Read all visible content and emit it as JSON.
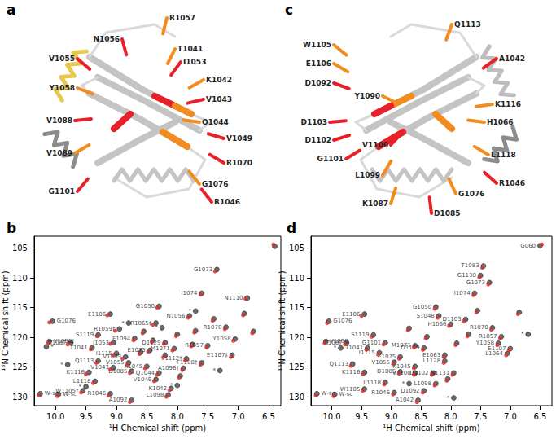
{
  "structures": [
    {
      "panel_label": "a",
      "residues": [
        {
          "text": "R1057",
          "color": "#f28c1e"
        },
        {
          "text": "N1056",
          "color": "#e8202a"
        },
        {
          "text": "T1041",
          "color": "#f28c1e"
        },
        {
          "text": "I1053",
          "color": "#e8202a"
        },
        {
          "text": "V1055",
          "color": "#e8202a"
        },
        {
          "text": "K1042",
          "color": "#f28c1e"
        },
        {
          "text": "Y1058",
          "color": "#f28c1e"
        },
        {
          "text": "V1043",
          "color": "#e8202a"
        },
        {
          "text": "Q1044",
          "color": "#f28c1e"
        },
        {
          "text": "V1088",
          "color": "#e8202a"
        },
        {
          "text": "V1049",
          "color": "#e8202a"
        },
        {
          "text": "R1070",
          "color": "#e8202a"
        },
        {
          "text": "V1089",
          "color": "#f28c1e"
        },
        {
          "text": "G1101",
          "color": "#e8202a"
        },
        {
          "text": "R1046",
          "color": "#e8202a"
        },
        {
          "text": "G1076",
          "color": "#f28c1e"
        }
      ]
    },
    {
      "panel_label": "c",
      "residues": [
        {
          "text": "Q1113",
          "color": "#f28c1e"
        },
        {
          "text": "W1105",
          "color": "#f28c1e"
        },
        {
          "text": "E1106",
          "color": "#f28c1e"
        },
        {
          "text": "D1092",
          "color": "#e8202a"
        },
        {
          "text": "Y1090",
          "color": "#f28c1e"
        },
        {
          "text": "D1103",
          "color": "#e8202a"
        },
        {
          "text": "D1102",
          "color": "#e8202a"
        },
        {
          "text": "G1101",
          "color": "#e8202a"
        },
        {
          "text": "V1100",
          "color": "#e8202a"
        },
        {
          "text": "L1099",
          "color": "#f28c1e"
        },
        {
          "text": "K1087",
          "color": "#f28c1e"
        },
        {
          "text": "A1042",
          "color": "#e8202a"
        },
        {
          "text": "K1116",
          "color": "#f28c1e"
        },
        {
          "text": "H1066",
          "color": "#f28c1e"
        },
        {
          "text": "L1118",
          "color": "#f28c1e"
        },
        {
          "text": "R1046",
          "color": "#e8202a"
        },
        {
          "text": "G1076",
          "color": "#f28c1e"
        },
        {
          "text": "D1085",
          "color": "#e8202a"
        }
      ]
    }
  ],
  "chart_data": [
    {
      "panel_label": "b",
      "type": "scatter",
      "xlabel": "¹H Chemical shift (ppm)",
      "ylabel": "¹⁵N Chemical shift (ppm)",
      "xlim": [
        10.35,
        6.3
      ],
      "ylim": [
        131.5,
        103
      ],
      "xticks": [
        {
          "value": 10,
          "label": "10.0"
        },
        9.5,
        {
          "value": 9,
          "label": "9.0"
        },
        8.5,
        {
          "value": 8,
          "label": "8.0"
        },
        7.5,
        {
          "value": 7,
          "label": "7.0"
        },
        6.5
      ],
      "yticks": [
        105,
        110,
        115,
        120,
        125,
        130
      ],
      "grid": false,
      "series": [
        {
          "color": "#3a3a3a",
          "marker": "circle",
          "x": [
            7.35,
            7.6,
            6.85,
            8.3,
            9.1,
            7.8,
            10.05,
            8.35,
            7.2,
            8.95,
            9.3,
            10.1,
            9.05,
            9.75,
            9.4,
            7.05,
            7.5,
            8.2,
            8.7,
            8.05,
            8.45,
            7.1,
            9.0,
            8.85,
            9.3,
            8.8,
            7.85,
            7.6,
            8.5,
            7.9,
            9.05,
            8.75,
            8.3,
            9.45,
            8.35,
            9.35,
            8.1,
            9.55,
            9.1,
            8.15,
            8.75,
            10.25,
            9.95,
            10.15,
            9.8,
            8.8,
            8.25,
            7.7,
            7.3,
            8.0,
            9.5,
            8.55,
            8.0,
            7.7,
            8.4,
            7.75,
            8.6,
            7.4,
            6.75,
            6.9,
            8.2,
            7.95,
            6.4
          ],
          "y": [
            108.6,
            112.6,
            113.4,
            114.8,
            116.1,
            116.4,
            117.3,
            117.6,
            118.3,
            118.6,
            119.6,
            120.7,
            120.9,
            120.9,
            121.8,
            120.3,
            121.4,
            120.9,
            120.2,
            121.9,
            122.2,
            123.0,
            122.7,
            123.3,
            124.0,
            124.3,
            123.6,
            124.3,
            124.9,
            125.2,
            125.1,
            125.7,
            126.0,
            125.9,
            127.1,
            127.4,
            128.6,
            129.0,
            129.5,
            129.7,
            130.6,
            129.5,
            129.6,
            121.6,
            124.6,
            117.6,
            118.4,
            115.6,
            125.6,
            128.1,
            128.3,
            119.0,
            119.5,
            118.9,
            120.5,
            121.2,
            122.5,
            116.9,
            119.0,
            116.0,
            123.0,
            126.5,
            104.7
          ],
          "labels": [
            "G1073",
            "I1074",
            "N1110",
            "G1050",
            "E1106",
            "N1056",
            "G1076",
            "R1065‡",
            "R1070",
            "R1059‡",
            "S1119",
            "Y1090†",
            "I1053",
            "K1087",
            "T1041",
            "Y1058",
            "R1057",
            "D1129",
            "E1094",
            "M1071",
            "E1075",
            "E1107‡",
            "I1115",
            "V1089",
            "Q1113",
            "V1055",
            "V1112†",
            "F1108†",
            "K1045",
            "A1096†",
            "V1043",
            "D1085",
            "Q1044",
            "K1116",
            "V1049",
            "L1118",
            "K1042",
            "W1105†",
            "R1046",
            "L1098",
            "A1092",
            "W-sc",
            "W-sc",
            "*",
            "*",
            "*",
            "*",
            "*",
            "*",
            "*",
            "*",
            null,
            null,
            null,
            null,
            null,
            null,
            null,
            null,
            null,
            null,
            null,
            null
          ]
        },
        {
          "color": "#d62f2f",
          "marker": "circle",
          "x": [
            7.38,
            7.62,
            6.88,
            8.33,
            9.15,
            7.82,
            10.1,
            8.4,
            7.22,
            9.02,
            9.32,
            10.12,
            9.1,
            9.8,
            9.42,
            7.08,
            7.52,
            8.22,
            8.72,
            8.08,
            8.48,
            7.12,
            9.05,
            8.9,
            9.33,
            8.82,
            7.87,
            7.62,
            8.53,
            7.92,
            9.1,
            8.78,
            8.33,
            9.5,
            8.38,
            9.38,
            8.13,
            9.58,
            9.13,
            8.18,
            8.78,
            10.27,
            9.97,
            6.42,
            8.57,
            8.02,
            7.72,
            8.42,
            7.77,
            8.62,
            7.42,
            6.77,
            6.92,
            8.22,
            7.97
          ],
          "y": [
            108.9,
            112.8,
            113.5,
            115.0,
            116.3,
            116.7,
            117.5,
            117.9,
            118.6,
            118.9,
            119.8,
            121.0,
            121.1,
            121.2,
            122.0,
            120.6,
            121.7,
            121.1,
            120.5,
            122.2,
            122.4,
            123.3,
            123.0,
            123.6,
            124.3,
            124.6,
            123.9,
            124.6,
            125.2,
            125.5,
            125.4,
            126.0,
            126.3,
            126.2,
            127.4,
            127.7,
            128.9,
            129.3,
            129.8,
            130.0,
            130.9,
            129.8,
            129.9,
            104.4,
            119.3,
            119.8,
            119.2,
            120.8,
            121.5,
            122.8,
            117.2,
            119.3,
            116.3,
            123.3,
            126.8
          ]
        }
      ]
    },
    {
      "panel_label": "d",
      "type": "scatter",
      "xlabel": "¹H Chemical shift (ppm)",
      "ylabel": "¹⁵N Chemical shift (ppm)",
      "xlim": [
        10.35,
        6.3
      ],
      "ylim": [
        131.5,
        103
      ],
      "xticks": [
        {
          "value": 10,
          "label": "10.0"
        },
        9.5,
        {
          "value": 9,
          "label": "9.0"
        },
        8.5,
        {
          "value": 8,
          "label": "8.0"
        },
        7.5,
        {
          "value": 7,
          "label": "7.0"
        },
        6.5
      ],
      "yticks": [
        105,
        110,
        115,
        120,
        125,
        130
      ],
      "grid": false,
      "series": [
        {
          "color": "#3a3a3a",
          "marker": "circle",
          "x": [
            6.5,
            7.45,
            7.5,
            7.35,
            7.6,
            8.25,
            9.45,
            8.2,
            7.75,
            10.05,
            8.0,
            7.3,
            9.3,
            7.15,
            10.1,
            9.75,
            9.1,
            7.2,
            9.4,
            8.6,
            8.45,
            9.2,
            7.0,
            7.05,
            8.85,
            8.1,
            8.1,
            8.95,
            9.65,
            8.6,
            8.85,
            8.6,
            8.3,
            7.95,
            9.45,
            9.1,
            8.25,
            9.45,
            8.95,
            8.45,
            8.55,
            10.25,
            9.95,
            9.85,
            8.7,
            7.95,
            6.7,
            7.7,
            8.4,
            7.9,
            8.7,
            7.55,
            6.85,
            8.05
          ],
          "y": [
            104.6,
            108.0,
            109.6,
            110.8,
            112.6,
            114.9,
            116.1,
            116.4,
            117.0,
            117.3,
            117.8,
            118.4,
            119.6,
            119.9,
            120.7,
            120.9,
            120.9,
            121.0,
            121.8,
            121.4,
            121.8,
            122.6,
            121.9,
            122.7,
            123.3,
            123.0,
            124.0,
            124.2,
            124.5,
            124.9,
            125.8,
            126.0,
            126.0,
            126.0,
            125.9,
            127.6,
            127.8,
            128.7,
            129.3,
            129.0,
            130.6,
            129.5,
            129.6,
            121.8,
            127.8,
            130.2,
            119.5,
            119.5,
            119.9,
            121.0,
            118.5,
            115.5,
            115.8,
            127.0
          ],
          "labels": [
            "G060",
            "T1083",
            "G1130",
            "G1073",
            "I1074",
            "G1050",
            "E1106",
            "S1048",
            "D1103",
            "G1076",
            "H1066",
            "R1070",
            "S1119",
            "R1057",
            "Y1090",
            "K1087",
            "G1101",
            "Y1058",
            "T1041",
            "M1071",
            "D1129",
            "I1115",
            "E1107",
            "L1064",
            "E1075",
            "E1063",
            "L1128",
            "V1055",
            "Q1113",
            "K1045",
            "D1085",
            "V1100",
            "D1102",
            "N1131",
            "K1116",
            "L1118",
            "L1098",
            "W1105",
            "R1046",
            "D1092",
            "A1042",
            "W-sc",
            "W-sc",
            "*",
            "*",
            "*",
            "*",
            null,
            null,
            null,
            null,
            null,
            null,
            null
          ]
        },
        {
          "color": "#d62f2f",
          "marker": "circle",
          "x": [
            6.47,
            7.47,
            7.52,
            7.37,
            7.62,
            8.27,
            9.5,
            8.22,
            7.78,
            10.08,
            8.03,
            7.32,
            9.33,
            7.17,
            10.12,
            9.78,
            9.13,
            7.22,
            9.42,
            8.62,
            8.47,
            9.22,
            7.02,
            7.07,
            8.87,
            8.12,
            8.12,
            8.97,
            9.68,
            8.62,
            8.87,
            8.62,
            8.32,
            7.97,
            9.48,
            9.12,
            8.27,
            9.48,
            8.97,
            8.47,
            8.57,
            10.27,
            9.97,
            7.72,
            8.42,
            7.92,
            8.72,
            7.57,
            6.87,
            8.07
          ],
          "y": [
            104.4,
            108.3,
            109.9,
            111.1,
            112.9,
            115.2,
            116.4,
            116.7,
            117.3,
            117.6,
            118.1,
            118.7,
            119.9,
            120.2,
            121.0,
            121.2,
            121.2,
            121.3,
            122.1,
            121.7,
            122.1,
            122.9,
            122.2,
            123.0,
            123.6,
            123.3,
            124.3,
            124.5,
            124.8,
            125.2,
            126.1,
            126.3,
            126.3,
            126.3,
            126.2,
            127.9,
            128.1,
            129.0,
            129.6,
            129.3,
            130.9,
            129.8,
            129.9,
            119.8,
            120.2,
            121.3,
            118.8,
            115.8,
            116.1,
            127.3
          ]
        }
      ]
    }
  ]
}
